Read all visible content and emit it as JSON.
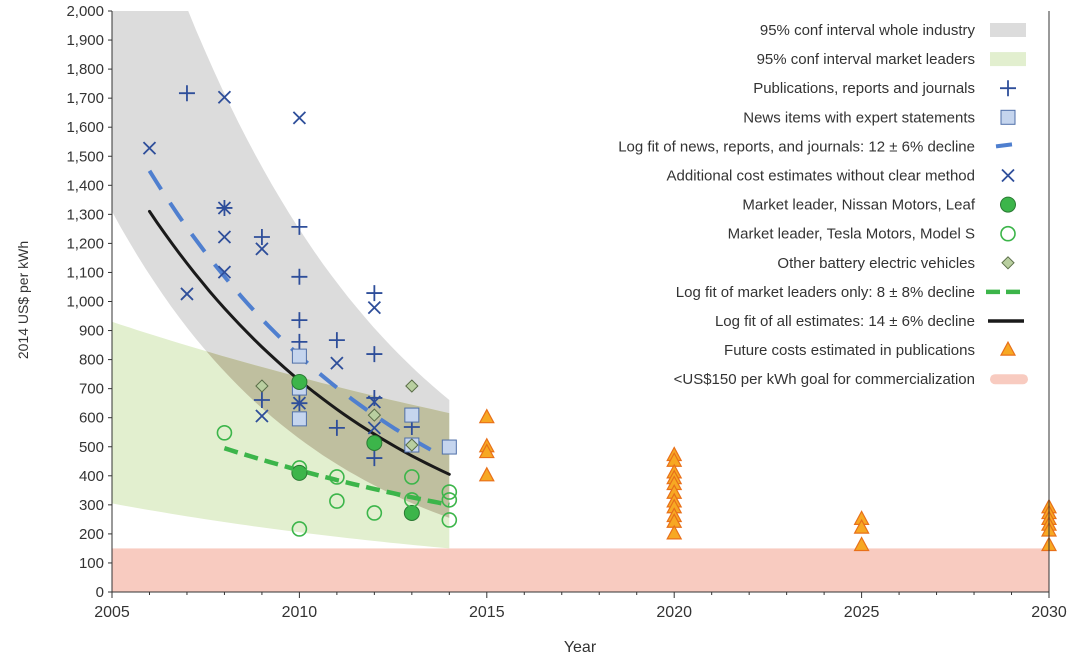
{
  "chart_data": {
    "type": "scatter",
    "xlabel": "Year",
    "ylabel": "2014 US$ per kWh",
    "xlim": [
      2005,
      2030
    ],
    "ylim": [
      0,
      2000
    ],
    "xticks": [
      2005,
      2010,
      2015,
      2020,
      2025,
      2030
    ],
    "yticks": [
      0,
      100,
      200,
      300,
      400,
      500,
      600,
      700,
      800,
      900,
      1000,
      1100,
      1200,
      1300,
      1400,
      1500,
      1600,
      1700,
      1800,
      1900,
      2000
    ],
    "ytick_labels": [
      "0",
      "100",
      "200",
      "300",
      "400",
      "500",
      "600",
      "700",
      "800",
      "900",
      "1,000",
      "1,100",
      "1,200",
      "1,300",
      "1,400",
      "1,500",
      "1,600",
      "1,700",
      "1,800",
      "1,900",
      "2,000"
    ],
    "legend_position": "top-right",
    "colors": {
      "gray_band": "#dcdcdc",
      "green_band": "#e2efcf",
      "overlap_band": "#bfbf9f",
      "blue": "#2e4e9a",
      "lightblue": "#4f7fcf",
      "square": "#c5d5ee",
      "green": "#3cb54a",
      "diamond": "#b9cfa0",
      "black": "#1a1a1a",
      "orange": "#f7a823",
      "pink": "#f8cbc0"
    },
    "bands": {
      "whole_industry": {
        "upper": [
          [
            2005,
            2763
          ],
          [
            2014,
            661
          ]
        ],
        "lower": [
          [
            2005,
            1310
          ],
          [
            2014,
            255
          ]
        ]
      },
      "market_leaders": {
        "upper": [
          [
            2005,
            930
          ],
          [
            2014,
            616
          ]
        ],
        "lower": [
          [
            2005,
            305
          ],
          [
            2014,
            150
          ]
        ]
      }
    },
    "series": [
      {
        "name": "Publications, reports and journals",
        "marker": "plus",
        "points": [
          [
            2007,
            1717
          ],
          [
            2008,
            1322
          ],
          [
            2009,
            1222
          ],
          [
            2009,
            661
          ],
          [
            2010,
            1257
          ],
          [
            2010,
            1085
          ],
          [
            2010,
            936
          ],
          [
            2010,
            861
          ],
          [
            2010,
            650
          ],
          [
            2011,
            867
          ],
          [
            2011,
            565
          ],
          [
            2012,
            1029
          ],
          [
            2012,
            819
          ],
          [
            2012,
            668
          ],
          [
            2012,
            461
          ],
          [
            2013,
            568
          ]
        ]
      },
      {
        "name": "News items with expert statements",
        "marker": "square",
        "points": [
          [
            2010,
            812
          ],
          [
            2010,
            702
          ],
          [
            2010,
            596
          ],
          [
            2013,
            609
          ],
          [
            2013,
            506
          ],
          [
            2014,
            499
          ]
        ]
      },
      {
        "name": "Additional cost estimates without clear method",
        "marker": "x",
        "points": [
          [
            2006,
            1528
          ],
          [
            2007,
            1026
          ],
          [
            2008,
            1703
          ],
          [
            2008,
            1322
          ],
          [
            2008,
            1222
          ],
          [
            2008,
            1101
          ],
          [
            2009,
            1181
          ],
          [
            2009,
            606
          ],
          [
            2010,
            1632
          ],
          [
            2010,
            650
          ],
          [
            2011,
            788
          ],
          [
            2012,
            979
          ],
          [
            2012,
            654
          ],
          [
            2012,
            565
          ]
        ]
      },
      {
        "name": "Market leader, Nissan Motors, Leaf",
        "marker": "filled-circle",
        "points": [
          [
            2010,
            723
          ],
          [
            2010,
            410
          ],
          [
            2012,
            513
          ],
          [
            2013,
            272
          ]
        ]
      },
      {
        "name": "Market leader, Tesla Motors, Model S",
        "marker": "open-circle",
        "points": [
          [
            2008,
            548
          ],
          [
            2010,
            427
          ],
          [
            2010,
            217
          ],
          [
            2011,
            396
          ],
          [
            2011,
            313
          ],
          [
            2012,
            272
          ],
          [
            2013,
            396
          ],
          [
            2013,
            317
          ],
          [
            2014,
            344
          ],
          [
            2014,
            317
          ],
          [
            2014,
            248
          ]
        ]
      },
      {
        "name": "Other battery electric vehicles",
        "marker": "diamond",
        "points": [
          [
            2009,
            709
          ],
          [
            2012,
            609
          ],
          [
            2013,
            709
          ],
          [
            2013,
            506
          ]
        ]
      },
      {
        "name": "Future costs estimated in publications",
        "marker": "triangle",
        "points": [
          [
            2015,
            600
          ],
          [
            2015,
            500
          ],
          [
            2015,
            480
          ],
          [
            2015,
            400
          ],
          [
            2020,
            470
          ],
          [
            2020,
            450
          ],
          [
            2020,
            410
          ],
          [
            2020,
            390
          ],
          [
            2020,
            370
          ],
          [
            2020,
            340
          ],
          [
            2020,
            310
          ],
          [
            2020,
            290
          ],
          [
            2020,
            260
          ],
          [
            2020,
            240
          ],
          [
            2020,
            200
          ],
          [
            2025,
            250
          ],
          [
            2025,
            220
          ],
          [
            2025,
            160
          ],
          [
            2030,
            290
          ],
          [
            2030,
            270
          ],
          [
            2030,
            250
          ],
          [
            2030,
            230
          ],
          [
            2030,
            210
          ],
          [
            2030,
            160
          ]
        ]
      }
    ],
    "fits": [
      {
        "name": "Log fit of news, reports, and journals: 12 ± 6% decline",
        "style": "blue-dash",
        "start": [
          2006,
          1450
        ],
        "end": [
          2013.5,
          490
        ]
      },
      {
        "name": "Log fit of market leaders only: 8 ± 8% decline",
        "style": "green-dash",
        "start": [
          2008,
          495
        ],
        "end": [
          2014,
          300
        ]
      },
      {
        "name": "Log fit of all estimates: 14 ± 6% decline",
        "style": "black",
        "start": [
          2006,
          1310
        ],
        "end": [
          2014,
          405
        ]
      }
    ],
    "goal": {
      "name": "<US$150 per kWh goal for commercialization",
      "value": 150
    },
    "legend": [
      {
        "label": "95% conf interval whole industry",
        "symbol": "gray-band"
      },
      {
        "label": "95% conf interval market leaders",
        "symbol": "green-band"
      },
      {
        "label": "Publications, reports and journals",
        "symbol": "plus"
      },
      {
        "label": "News items with expert statements",
        "symbol": "square"
      },
      {
        "label": "Log fit of news, reports, and journals: 12 ± 6% decline",
        "symbol": "blue-dash"
      },
      {
        "label": "Additional cost estimates without clear method",
        "symbol": "x"
      },
      {
        "label": "Market leader, Nissan Motors, Leaf",
        "symbol": "filled-circle"
      },
      {
        "label": "Market leader, Tesla Motors, Model S",
        "symbol": "open-circle"
      },
      {
        "label": "Other battery electric vehicles",
        "symbol": "diamond"
      },
      {
        "label": "Log fit of market leaders only: 8 ± 8% decline",
        "symbol": "green-dash"
      },
      {
        "label": "Log fit of all estimates: 14 ± 6% decline",
        "symbol": "black"
      },
      {
        "label": "Future costs estimated in publications",
        "symbol": "triangle"
      },
      {
        "label": "<US$150 per kWh goal for commercialization",
        "symbol": "pink"
      }
    ]
  }
}
